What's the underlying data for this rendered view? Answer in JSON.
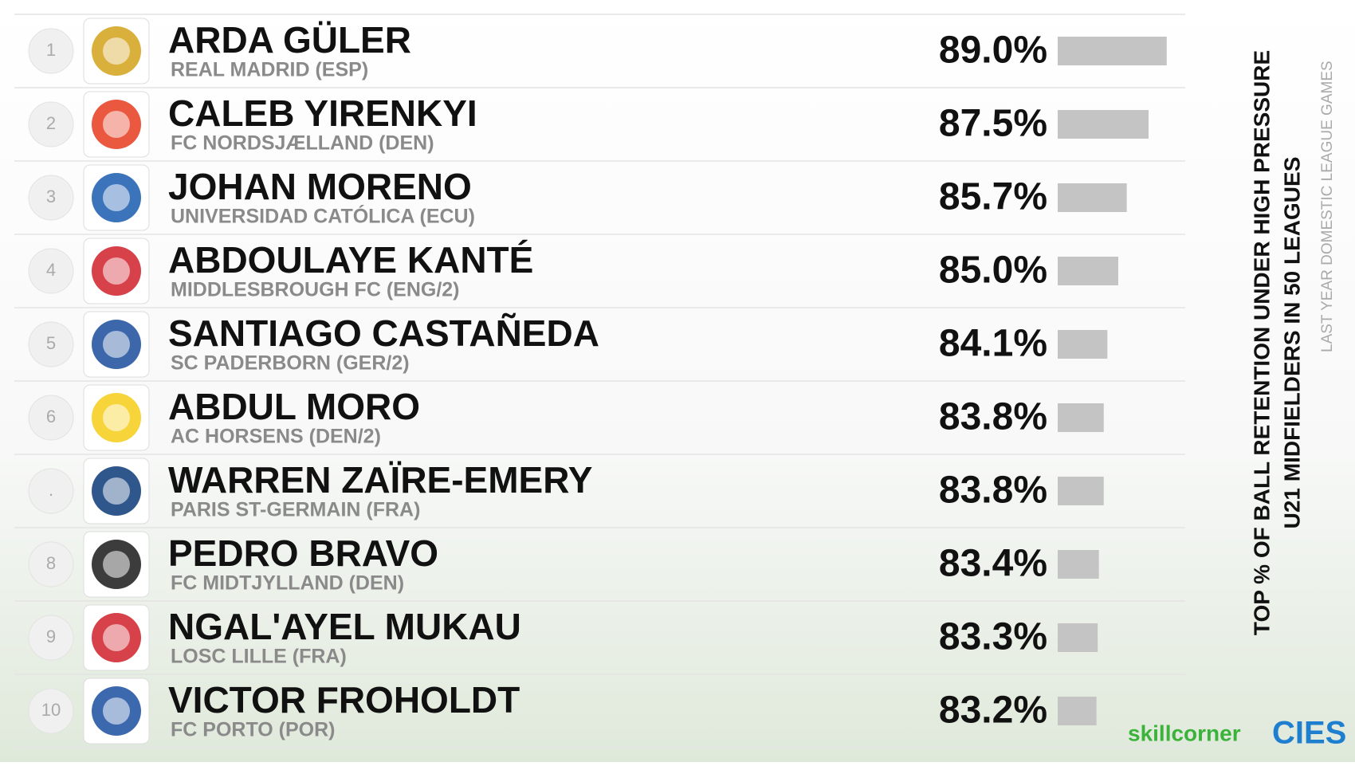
{
  "chart_data": {
    "type": "bar",
    "orientation": "horizontal",
    "title_lines": [
      "TOP % OF BALL RETENTION UNDER HIGH PRESSURE",
      "U21 MIDFIELDERS IN 50 LEAGUES"
    ],
    "subtitle": "LAST YEAR DOMESTIC LEAGUE GAMES",
    "ranks": [
      "1",
      "2",
      "3",
      "4",
      "5",
      "6",
      ".",
      "8",
      "9",
      "10"
    ],
    "categories": [
      "ARDA GÜLER",
      "CALEB YIRENKYI",
      "JOHAN MORENO",
      "ABDOULAYE KANTÉ",
      "SANTIAGO CASTAÑEDA",
      "ABDUL MORO",
      "WARREN ZAÏRE-EMERY",
      "PEDRO BRAVO",
      "NGAL'AYEL MUKAU",
      "VICTOR FROHOLDT"
    ],
    "clubs": [
      "REAL MADRID (ESP)",
      "FC NORDSJÆLLAND (DEN)",
      "UNIVERSIDAD CATÓLICA (ECU)",
      "MIDDLESBROUGH FC (ENG/2)",
      "SC PADERBORN (GER/2)",
      "AC HORSENS (DEN/2)",
      "PARIS ST-GERMAIN (FRA)",
      "FC MIDTJYLLAND (DEN)",
      "LOSC LILLE (FRA)",
      "FC PORTO (POR)"
    ],
    "values": [
      89.0,
      87.5,
      85.7,
      85.0,
      84.1,
      83.8,
      83.8,
      83.4,
      83.3,
      83.2
    ],
    "value_labels": [
      "89.0%",
      "87.5%",
      "85.7%",
      "85.0%",
      "84.1%",
      "83.8%",
      "83.8%",
      "83.4%",
      "83.3%",
      "83.2%"
    ],
    "color": "#c4c4c4",
    "xlim": [
      80,
      90
    ],
    "logos": [
      "skillcorner",
      "CIES"
    ]
  }
}
